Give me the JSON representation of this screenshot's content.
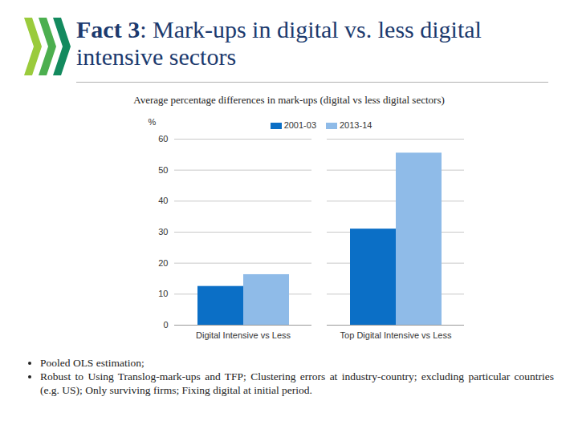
{
  "chart_data": {
    "type": "bar",
    "title": "Fact 3: Mark-ups in digital vs. less digital intensive sectors",
    "subtitle": "Average percentage differences in mark-ups (digital vs less digital sectors)",
    "ylabel": "%",
    "categories": [
      "Digital Intensive vs Less",
      "Top Digital Intensive vs Less"
    ],
    "series": [
      {
        "name": "2001-03",
        "color": "#0b6fc6",
        "values": [
          12.5,
          31
        ]
      },
      {
        "name": "2013-14",
        "color": "#8fbbe8",
        "values": [
          16.3,
          55.5
        ]
      }
    ],
    "ylim": [
      0,
      60
    ],
    "yticks": [
      0,
      10,
      20,
      30,
      40,
      50,
      60
    ],
    "grid": true,
    "legend": "top",
    "notes": [
      "Pooled OLS estimation;",
      "Robust to Using Translog-mark-ups and TFP; Clustering errors at industry-country; excluding particular countries (e.g. US); Only surviving firms; Fixing digital at initial period."
    ]
  }
}
